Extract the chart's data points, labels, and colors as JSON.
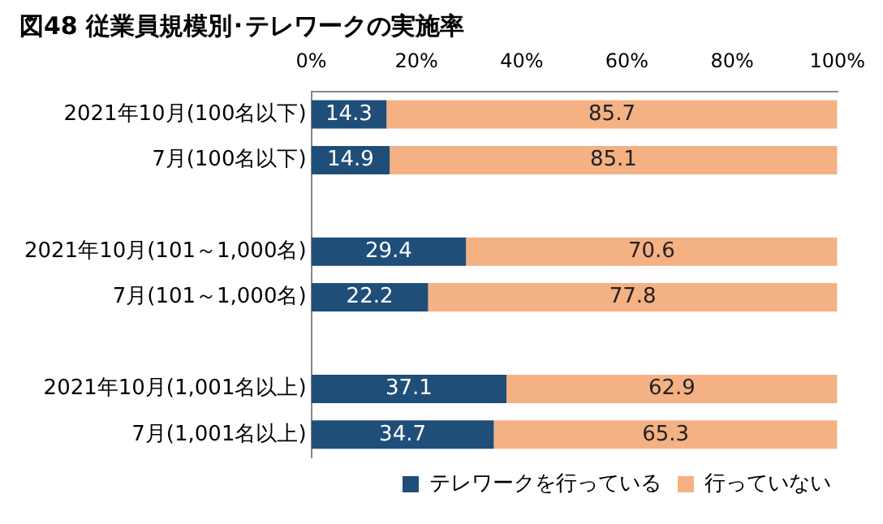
{
  "chart_data": {
    "type": "bar",
    "title": "図48 従業員規模別･テレワークの実施率",
    "orientation": "horizontal",
    "stacked": true,
    "categories": [
      "2021年10月(100名以下)",
      "7月(100名以下)",
      null,
      "2021年10月(101～1,000名)",
      "7月(101～1,000名)",
      null,
      "2021年10月(1,001名以上)",
      "7月(1,001名以上)"
    ],
    "series": [
      {
        "name": "テレワークを行っている",
        "color": "#1f4e79",
        "values": [
          14.3,
          14.9,
          null,
          29.4,
          22.2,
          null,
          37.1,
          34.7
        ]
      },
      {
        "name": "行っていない",
        "color": "#f4b183",
        "values": [
          85.7,
          85.1,
          null,
          70.6,
          77.8,
          null,
          62.9,
          65.3
        ]
      }
    ],
    "xlim": [
      0,
      100
    ],
    "xticks": [
      {
        "value": 0,
        "label": "0%"
      },
      {
        "value": 20,
        "label": "20%"
      },
      {
        "value": 40,
        "label": "40%"
      },
      {
        "value": 60,
        "label": "60%"
      },
      {
        "value": 80,
        "label": "80%"
      },
      {
        "value": 100,
        "label": "100%"
      }
    ],
    "data_labels": true,
    "grid": false,
    "legend": "bottom"
  }
}
